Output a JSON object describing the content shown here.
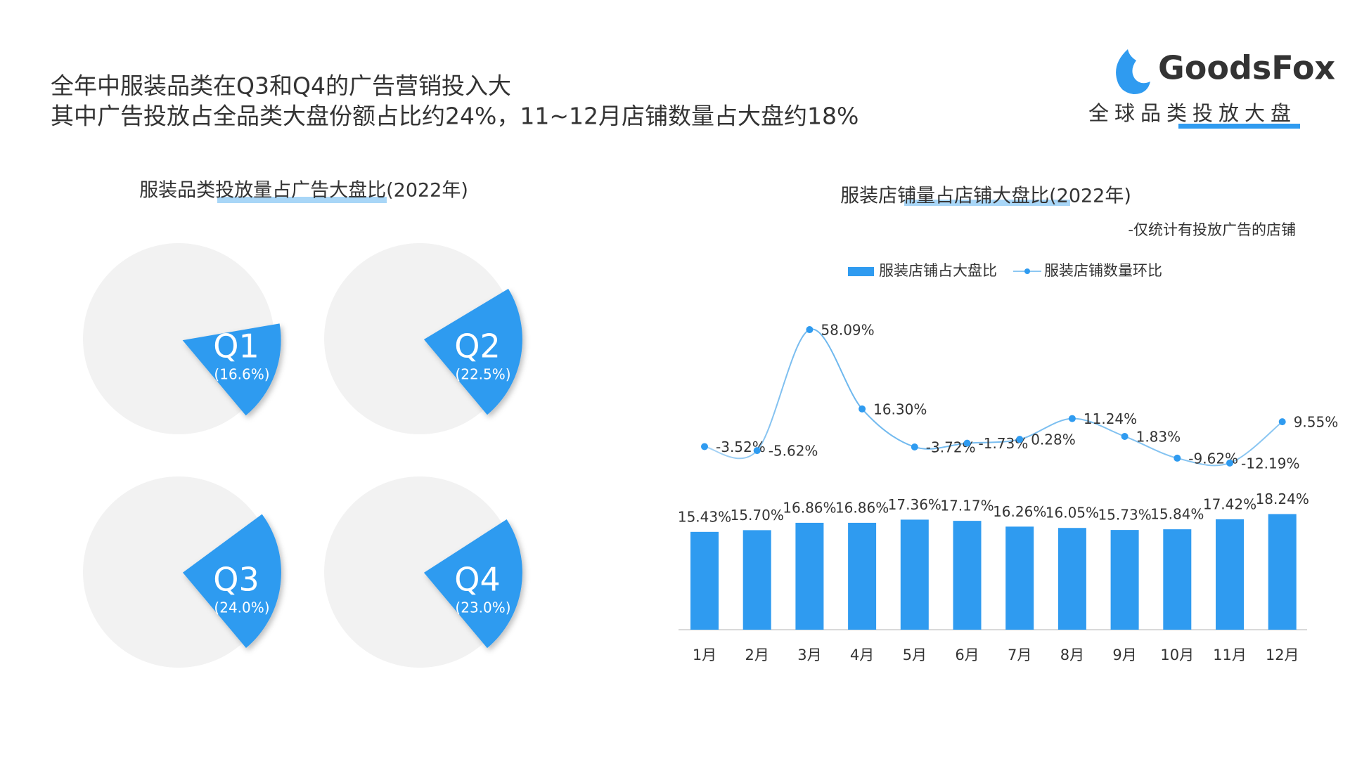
{
  "header": {
    "title_lines": [
      "全年中服装品类在Q3和Q4的广告营销投入大",
      "其中广告投放占全品类大盘份额占比约24%，11~12月店铺数量占大盘约18%"
    ]
  },
  "logo": {
    "name": "GoodsFox",
    "tagline": "全球品类投放大盘"
  },
  "chart_data": [
    {
      "type": "pie",
      "title": "服装品类投放量占广告大盘比(2022年)",
      "categories": [
        "Q1",
        "Q2",
        "Q3",
        "Q4"
      ],
      "values": [
        16.6,
        22.5,
        24.0,
        23.0
      ],
      "value_labels": [
        "(16.6%)",
        "(22.5%)",
        "(24.0%)",
        "(23.0%)"
      ],
      "color": "#2f9bf0"
    },
    {
      "type": "combo",
      "title": "服装店铺量占店铺大盘比(2022年)",
      "subtitle": "-仅统计有投放广告的店铺",
      "categories": [
        "1月",
        "2月",
        "3月",
        "4月",
        "5月",
        "6月",
        "7月",
        "8月",
        "9月",
        "10月",
        "11月",
        "12月"
      ],
      "ylim": [
        0,
        50
      ],
      "y2lim": [
        -100,
        67
      ],
      "series": [
        {
          "name": "服装店铺占大盘比",
          "type": "bar",
          "color": "#2f9bf0",
          "values": [
            15.43,
            15.7,
            16.86,
            16.86,
            17.36,
            17.17,
            16.26,
            16.05,
            15.73,
            15.84,
            17.42,
            18.24
          ],
          "value_labels": [
            "15.43%",
            "15.70%",
            "16.86%",
            "16.86%",
            "17.36%",
            "17.17%",
            "16.26%",
            "16.05%",
            "15.73%",
            "15.84%",
            "17.42%",
            "18.24%"
          ]
        },
        {
          "name": "服装店铺数量环比",
          "type": "line",
          "axis": "y2",
          "color": "#2f9bf0",
          "values": [
            -3.52,
            -5.62,
            58.09,
            16.3,
            -3.72,
            -1.73,
            0.28,
            11.24,
            1.83,
            -9.62,
            -12.19,
            9.55
          ],
          "value_labels": [
            "-3.52%",
            "-5.62%",
            "58.09%",
            "16.30%",
            "-3.72%",
            "-1.73%",
            "0.28%",
            "11.24%",
            "1.83%",
            "-9.62%",
            "-12.19%",
            "9.55%"
          ]
        }
      ]
    }
  ]
}
